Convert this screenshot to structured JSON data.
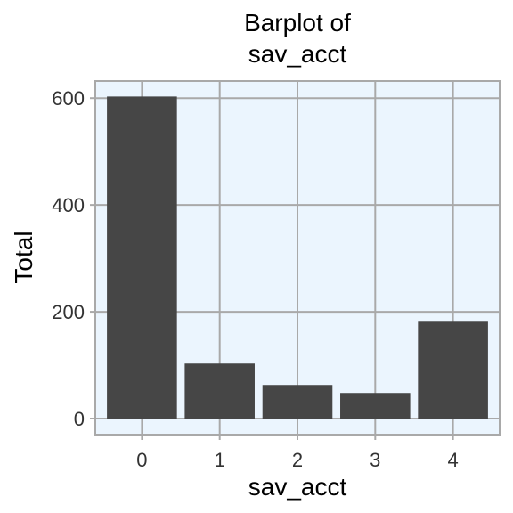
{
  "chart_data": {
    "type": "bar",
    "title_lines": [
      "Barplot of",
      "sav_acct"
    ],
    "xlabel": "sav_acct",
    "ylabel": "Total",
    "categories": [
      "0",
      "1",
      "2",
      "3",
      "4"
    ],
    "values": [
      603,
      103,
      63,
      48,
      183
    ],
    "ylim": [
      -30,
      632
    ],
    "yticks": [
      0,
      200,
      400,
      600
    ],
    "ytick_labels": [
      "0",
      "200",
      "400",
      "600"
    ],
    "grid": true,
    "legend": "none"
  },
  "colors": {
    "bar": "#464646",
    "panel": "#ebf5fe",
    "grid": "#a9a9a9",
    "border": "#a9a9a9",
    "background": "#ffffff"
  }
}
